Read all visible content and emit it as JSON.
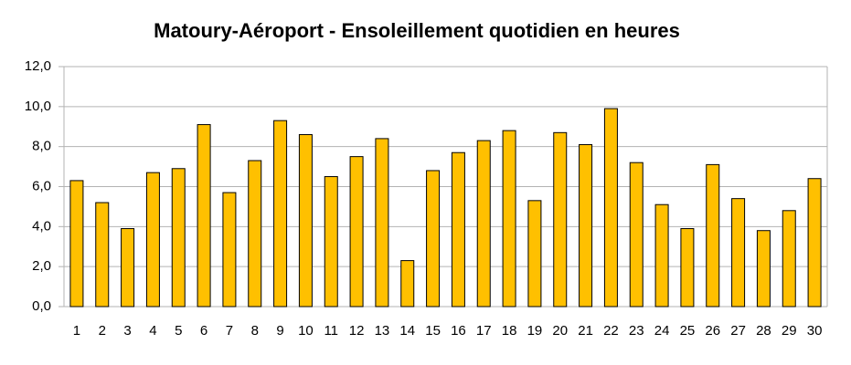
{
  "chart_data": {
    "type": "bar",
    "title": "Matoury-Aéroport - Ensoleillement quotidien en heures",
    "categories": [
      "1",
      "2",
      "3",
      "4",
      "5",
      "6",
      "7",
      "8",
      "9",
      "10",
      "11",
      "12",
      "13",
      "14",
      "15",
      "16",
      "17",
      "18",
      "19",
      "20",
      "21",
      "22",
      "23",
      "24",
      "25",
      "26",
      "27",
      "28",
      "29",
      "30"
    ],
    "values": [
      6.3,
      5.2,
      3.9,
      6.7,
      6.9,
      9.1,
      5.7,
      7.3,
      9.3,
      8.6,
      6.5,
      7.5,
      8.4,
      2.3,
      6.8,
      7.7,
      8.3,
      8.8,
      5.3,
      8.7,
      8.1,
      9.9,
      7.2,
      5.1,
      3.9,
      7.1,
      5.4,
      3.8,
      4.8,
      6.4
    ],
    "color": "#ffc000",
    "ylim": [
      0,
      12
    ],
    "yticks": [
      {
        "value": 0,
        "label": "0,0"
      },
      {
        "value": 2,
        "label": "2,0"
      },
      {
        "value": 4,
        "label": "4,0"
      },
      {
        "value": 6,
        "label": "6,0"
      },
      {
        "value": 8,
        "label": "8,0"
      },
      {
        "value": 10,
        "label": "10,0"
      },
      {
        "value": 12,
        "label": "12,0"
      }
    ],
    "grid": true
  }
}
